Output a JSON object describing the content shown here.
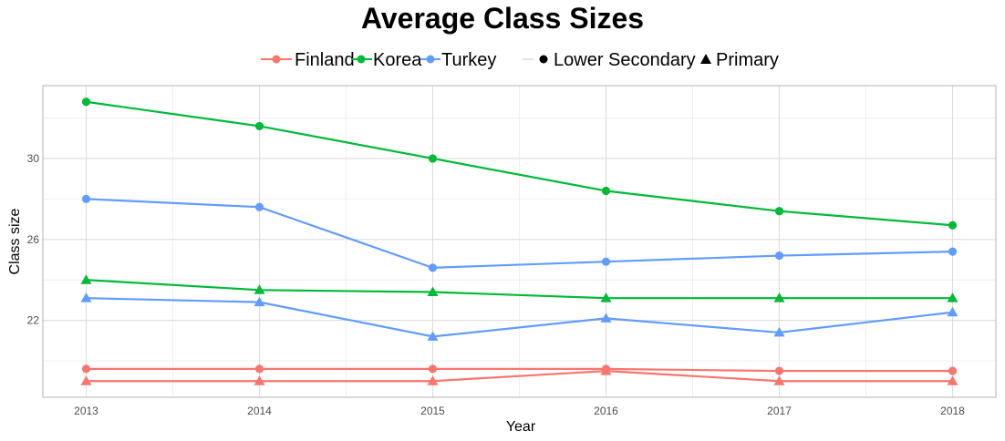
{
  "chart_data": {
    "type": "line",
    "title": "Average Class Sizes",
    "xlabel": "Year",
    "ylabel": "Class size",
    "x": [
      2013,
      2014,
      2015,
      2016,
      2017,
      2018
    ],
    "xlim": [
      2012.75,
      2018.25
    ],
    "ylim": [
      18.2,
      33.6
    ],
    "y_ticks": [
      22,
      26,
      30
    ],
    "grid": true,
    "legend_position": "top",
    "legend": {
      "country_entries": [
        "Finland",
        "Korea",
        "Turkey"
      ],
      "level_entries": [
        "Lower Secondary",
        "Primary"
      ]
    },
    "colors": {
      "Finland": "#F8766D",
      "Korea": "#00BA38",
      "Turkey": "#619CFF"
    },
    "series": [
      {
        "country": "Finland",
        "level": "Lower Secondary",
        "marker": "circle",
        "values": [
          19.6,
          19.6,
          19.6,
          19.6,
          19.5,
          19.5
        ]
      },
      {
        "country": "Finland",
        "level": "Primary",
        "marker": "triangle",
        "values": [
          19.0,
          19.0,
          19.0,
          19.5,
          19.0,
          19.0
        ]
      },
      {
        "country": "Korea",
        "level": "Lower Secondary",
        "marker": "circle",
        "values": [
          32.8,
          31.6,
          30.0,
          28.4,
          27.4,
          26.7
        ]
      },
      {
        "country": "Korea",
        "level": "Primary",
        "marker": "triangle",
        "values": [
          24.0,
          23.5,
          23.4,
          23.1,
          23.1,
          23.1
        ]
      },
      {
        "country": "Turkey",
        "level": "Lower Secondary",
        "marker": "circle",
        "values": [
          28.0,
          27.6,
          24.6,
          24.9,
          25.2,
          25.4
        ]
      },
      {
        "country": "Turkey",
        "level": "Primary",
        "marker": "triangle",
        "values": [
          23.1,
          22.9,
          21.2,
          22.1,
          21.4,
          22.4
        ]
      }
    ]
  }
}
